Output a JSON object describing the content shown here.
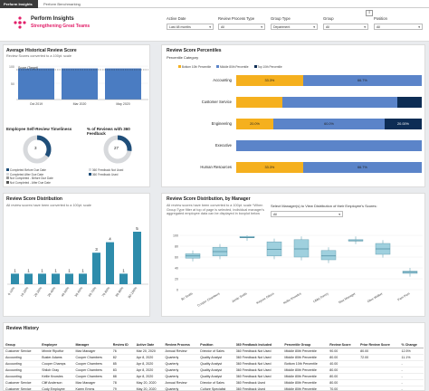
{
  "tabs": [
    {
      "label": "Perform Insights"
    },
    {
      "label": "Perform Benchmarking"
    }
  ],
  "brand": {
    "title": "Perform Insights",
    "subtitle": "Strengthening Great Teams"
  },
  "filters": [
    {
      "label": "Active Date",
      "value": "Last 48 months"
    },
    {
      "label": "Review Process Type",
      "value": "All"
    },
    {
      "label": "Group Type",
      "value": "Department"
    },
    {
      "label": "Group",
      "value": "All"
    },
    {
      "label": "Position",
      "value": "All"
    }
  ],
  "avg_card": {
    "title": "Average Historical Review Score",
    "subtitle": "Review Scores converted to a 100pt. scale"
  },
  "avg_chart": {
    "categories": [
      "Oct 2019",
      "Mar 2020",
      "May 2020"
    ],
    "values": [
      82,
      82,
      82
    ],
    "tick_labels": [
      "100",
      "50"
    ],
    "target_label": "Score (Target)"
  },
  "timeliness": {
    "title": "Employee Self-Review Timeliness",
    "center": "3",
    "legend": [
      "Completed Before Due Date",
      "Completed After Due Date",
      "Not Completed - Before Due Date",
      "Not Completed - After Due Date"
    ]
  },
  "feedback360": {
    "title": "% of Reviews with 360 Feedback",
    "center": "27",
    "legend": [
      "360 Feedback Not Used",
      "360 Feedback Used"
    ]
  },
  "percentiles": {
    "title": "Review Score Percentiles",
    "category_label": "Percentile Category",
    "legend": [
      "Bottom 10th Percentile",
      "Middle 80th Percentile",
      "Top 10th Percentile"
    ],
    "colors": {
      "bottom": "#f5b01e",
      "middle": "#5b84c9",
      "top": "#0d2d55"
    }
  },
  "percentile_chart": {
    "rows": [
      {
        "label": "Accounting",
        "bottom": "33.3%",
        "middle": "66.7%"
      },
      {
        "label": "Customer Service",
        "bottom": "",
        "middle": ""
      },
      {
        "label": "Engineering",
        "bottom": "20.0%",
        "middle": "60.0%",
        "top": "20.00%"
      },
      {
        "label": "Executive",
        "bottom": "",
        "middle": ""
      },
      {
        "label": "Human Resources",
        "bottom": "33.3%",
        "middle": "66.7%"
      }
    ]
  },
  "distribution": {
    "title": "Review Score Distribution",
    "subtitle": "All review scores have been converted to a 100pt. scale"
  },
  "chart_data": {
    "type": "bar",
    "categories": [
      "0-10%",
      "10-20%",
      "20-30%",
      "30-40%",
      "40-50%",
      "50-60%",
      "60-70%",
      "70-80%",
      "80-90%",
      "90-100%"
    ],
    "values": [
      1,
      1,
      1,
      1,
      1,
      1,
      3,
      4,
      1,
      5
    ],
    "ylim": [
      0,
      5
    ]
  },
  "manager": {
    "title": "Review Score Distribution, by Manager",
    "subtitle": "All review scores have been converted to a 100pt. scale *When Group Type filter at top of page is selected, individual manager's aggregated employee data can be displayed in boxplot below",
    "selector_label": "Select Manager(s) to View Distribution of their Employee's Scores:",
    "selector_value": "All",
    "ticks": [
      "100",
      "80",
      "60",
      "40",
      "20",
      "0"
    ],
    "managers": [
      "Bo Smith",
      "Cooper Chambers",
      "Jamie Smith",
      "Kaycee Gilson",
      "Kellie Knowles",
      "Libby Davey",
      "Max Manager",
      "Olive Walker",
      "Pam Pam"
    ]
  },
  "history": {
    "title": "Review History",
    "columns": [
      "Group",
      "Employee",
      "Manager",
      "Review ID",
      "Active Date",
      "Review Process",
      "Position",
      "360 Feedback Included",
      "Percentile Group",
      "Review Score",
      "Prior Review Score",
      "% Change"
    ],
    "rows": [
      [
        "Customer Service",
        "Minnie Ripoftor",
        "Max Manager",
        "76",
        "Mar 20, 2020",
        "Annual Review",
        "Director of Sales",
        "360 Feedback Not Used",
        "Middle 80th Percentile",
        "90.00",
        "80.00",
        "12.5%"
      ],
      [
        "Accounting",
        "Buster Adams",
        "Cooper Chambers",
        "82",
        "Apr 8, 2020",
        "Quarterly",
        "Quality Analyst",
        "360 Feedback Not Used",
        "Middle 80th Percentile",
        "80.00",
        "72.00",
        "11.1%"
      ],
      [
        "Accounting",
        "Cooper Champs",
        "Cooper Chambers",
        "85",
        "Apr 8, 2020",
        "Quarterly",
        "Quality Analyst",
        "360 Feedback Not Used",
        "Bottom 10th Percentile",
        "40.00",
        "",
        "-"
      ],
      [
        "Accounting",
        "Shiloh Gray",
        "Cooper Chambers",
        "83",
        "Apr 8, 2020",
        "Quarterly",
        "Quality Analyst",
        "360 Feedback Not Used",
        "Middle 80th Percentile",
        "80.00",
        "",
        "-"
      ],
      [
        "Accounting",
        "Kellie Knowles",
        "Cooper Chambers",
        "88",
        "Apr 8, 2020",
        "Quarterly",
        "Quality Analyst",
        "360 Feedback Not Used",
        "Middle 80th Percentile",
        "80.00",
        "",
        "-"
      ],
      [
        "Customer Service",
        "Cliff Anderson",
        "Max Manager",
        "78",
        "May 20, 2020",
        "Annual Review",
        "Director of Sales",
        "360 Feedback Used",
        "Middle 80th Percentile",
        "80.00",
        "",
        "-"
      ],
      [
        "Customer Service",
        "Cody Employee",
        "Karen Emms",
        "79",
        "May 20, 2020",
        "Quarterly",
        "Culture Specialist",
        "360 Feedback Used",
        "Middle 80th Percentile",
        "70.00",
        "",
        "-"
      ]
    ]
  }
}
